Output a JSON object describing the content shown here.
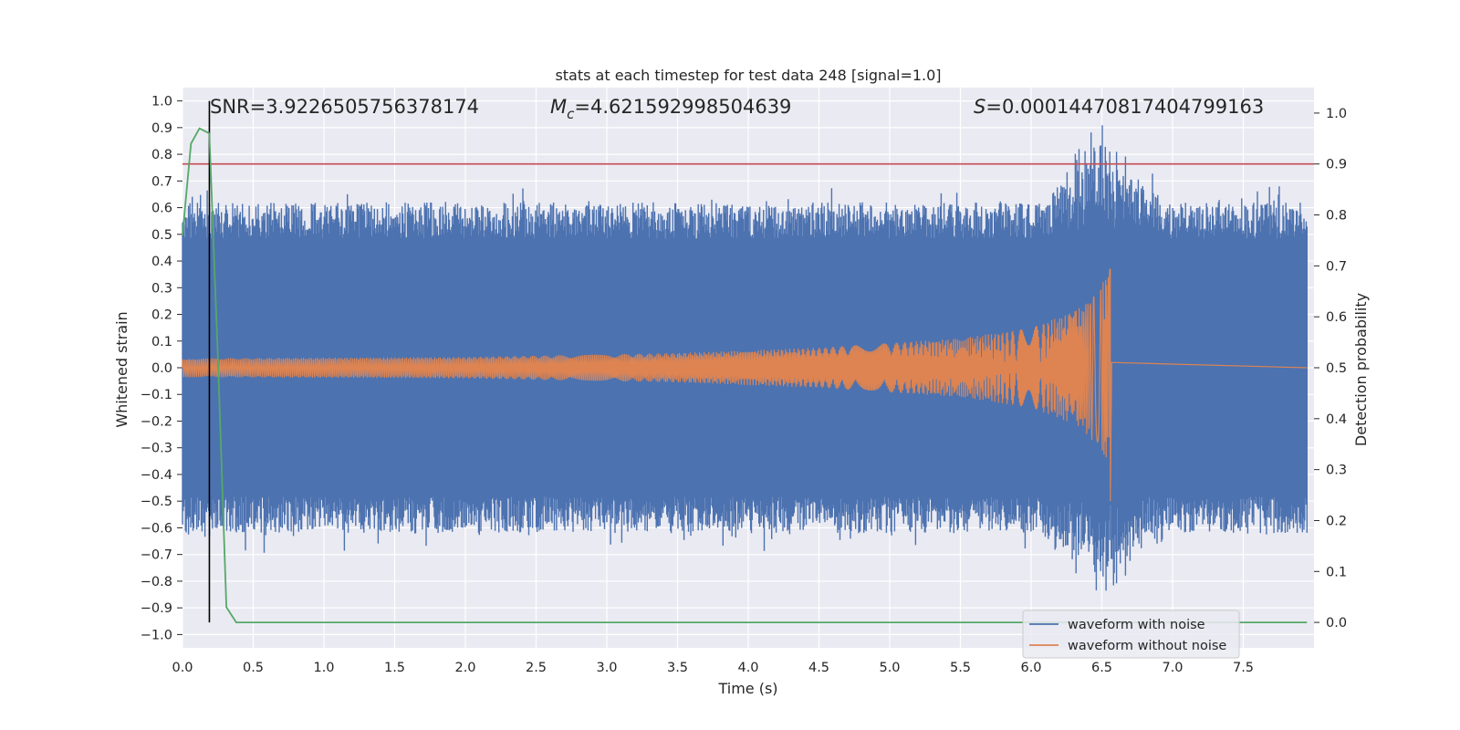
{
  "chart_data": {
    "type": "line",
    "title": "stats at each timestep for test data 248 [signal=1.0]",
    "xlabel": "Time (s)",
    "ylabel": "Whitened strain",
    "y2label": "Detection probability",
    "xlim": [
      0.0,
      8.0
    ],
    "ylim": [
      -1.05,
      1.05
    ],
    "y2lim": [
      -0.05,
      1.05
    ],
    "x_ticks": [
      "0.0",
      "0.5",
      "1.0",
      "1.5",
      "2.0",
      "2.5",
      "3.0",
      "3.5",
      "4.0",
      "4.5",
      "5.0",
      "5.5",
      "6.0",
      "6.5",
      "7.0",
      "7.5"
    ],
    "y_ticks": [
      "1.0",
      "0.9",
      "0.8",
      "0.7",
      "0.6",
      "0.5",
      "0.4",
      "0.3",
      "0.2",
      "0.1",
      "0.0",
      "−0.1",
      "−0.2",
      "−0.3",
      "−0.4",
      "−0.5",
      "−0.6",
      "−0.7",
      "−0.8",
      "−0.9",
      "−1.0"
    ],
    "y2_ticks": [
      "1.0",
      "0.9",
      "0.8",
      "0.7",
      "0.6",
      "0.5",
      "0.4",
      "0.3",
      "0.2",
      "0.1",
      "0.0"
    ],
    "grid": true,
    "legend_position": "bottom-right",
    "annotations": {
      "snr": "SNR=3.9226505756378174",
      "mc_symbol": "M",
      "mc_sub": "c",
      "mc_value": "=4.621592998504639",
      "s_symbol": "S",
      "s_value": "=0.00014470817404799163"
    },
    "series": [
      {
        "name": "waveform with noise",
        "color": "#4c72b0",
        "noise_envelope": 0.62,
        "peak_max": 1.0,
        "peak_min": -0.9,
        "peak_time": 6.5
      },
      {
        "name": "waveform without noise",
        "color": "#dd8452",
        "envelope": [
          [
            0.0,
            0.035
          ],
          [
            2.0,
            0.04
          ],
          [
            3.5,
            0.055
          ],
          [
            4.5,
            0.075
          ],
          [
            5.5,
            0.11
          ],
          [
            6.0,
            0.15
          ],
          [
            6.3,
            0.21
          ],
          [
            6.45,
            0.28
          ],
          [
            6.53,
            0.34
          ],
          [
            6.56,
            0.4
          ]
        ],
        "merger_min": -0.5,
        "merger_time": 6.56
      },
      {
        "name": "detection probability",
        "axis": "right",
        "color": "#55a868",
        "x": [
          0.0,
          0.06,
          0.12,
          0.19,
          0.25,
          0.31,
          0.38,
          0.5,
          7.95
        ],
        "y": [
          0.76,
          0.94,
          0.97,
          0.96,
          0.52,
          0.03,
          0.0,
          0.0,
          0.0
        ]
      }
    ],
    "threshold": {
      "value": 0.9,
      "axis": "right",
      "color": "#c44e52"
    },
    "detection_time": {
      "value": 0.19,
      "color": "#000000"
    }
  }
}
